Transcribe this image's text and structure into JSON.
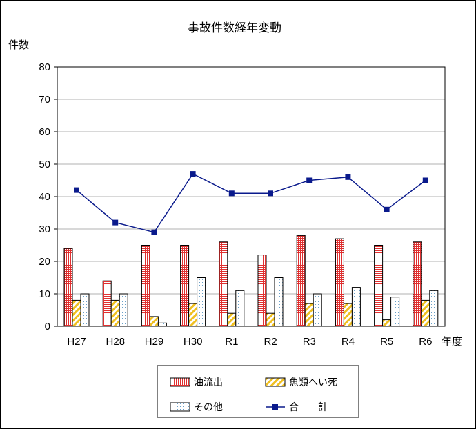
{
  "chart_data": {
    "type": "bar",
    "title": "事故件数経年変動",
    "ylabel": "件数",
    "xlabel": "年度",
    "ylim": [
      0,
      80
    ],
    "yticks": [
      0,
      10,
      20,
      30,
      40,
      50,
      60,
      70,
      80
    ],
    "grid": true,
    "legend_position": "bottom",
    "categories": [
      "H27",
      "H28",
      "H29",
      "H30",
      "R1",
      "R2",
      "R3",
      "R4",
      "R5",
      "R6"
    ],
    "series": [
      {
        "name": "油流出",
        "type": "bar",
        "pattern": "red-grid",
        "color": "#e03030",
        "values": [
          24,
          14,
          25,
          25,
          26,
          22,
          28,
          27,
          25,
          26
        ]
      },
      {
        "name": "魚類へい死",
        "type": "bar",
        "pattern": "yellow-diagonal",
        "color": "#f0c020",
        "values": [
          8,
          8,
          3,
          7,
          4,
          4,
          7,
          7,
          2,
          8
        ]
      },
      {
        "name": "その他",
        "type": "bar",
        "pattern": "dotted",
        "color": "#6aa0c8",
        "values": [
          10,
          10,
          1,
          15,
          11,
          15,
          10,
          12,
          9,
          11
        ]
      },
      {
        "name": "合　　計",
        "type": "line",
        "marker": "square",
        "color": "#0a1a8c",
        "values": [
          42,
          32,
          29,
          47,
          41,
          41,
          45,
          46,
          36,
          45
        ]
      }
    ]
  }
}
